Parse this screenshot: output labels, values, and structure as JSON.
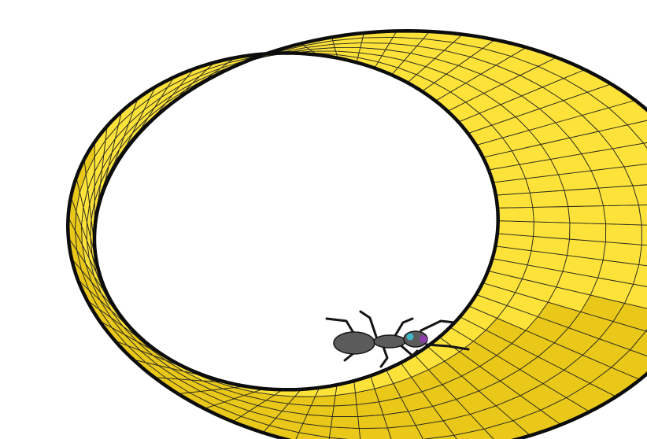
{
  "figure": {
    "subject": "mobius-strip",
    "creature": "ant",
    "colors": {
      "background": "#ffffff",
      "strip_fill": "#fde23a",
      "strip_shadow": "#e9c81a",
      "grid_line": "#2b2b1f",
      "edge_line": "#0d0d0d",
      "ant_body": "#5b5b5b",
      "ant_legs": "#151515",
      "ant_eye": "#40b8c8",
      "ant_head_accent": "#8c3fa8"
    },
    "grid": {
      "u_divisions": 64,
      "v_divisions": 6
    }
  }
}
